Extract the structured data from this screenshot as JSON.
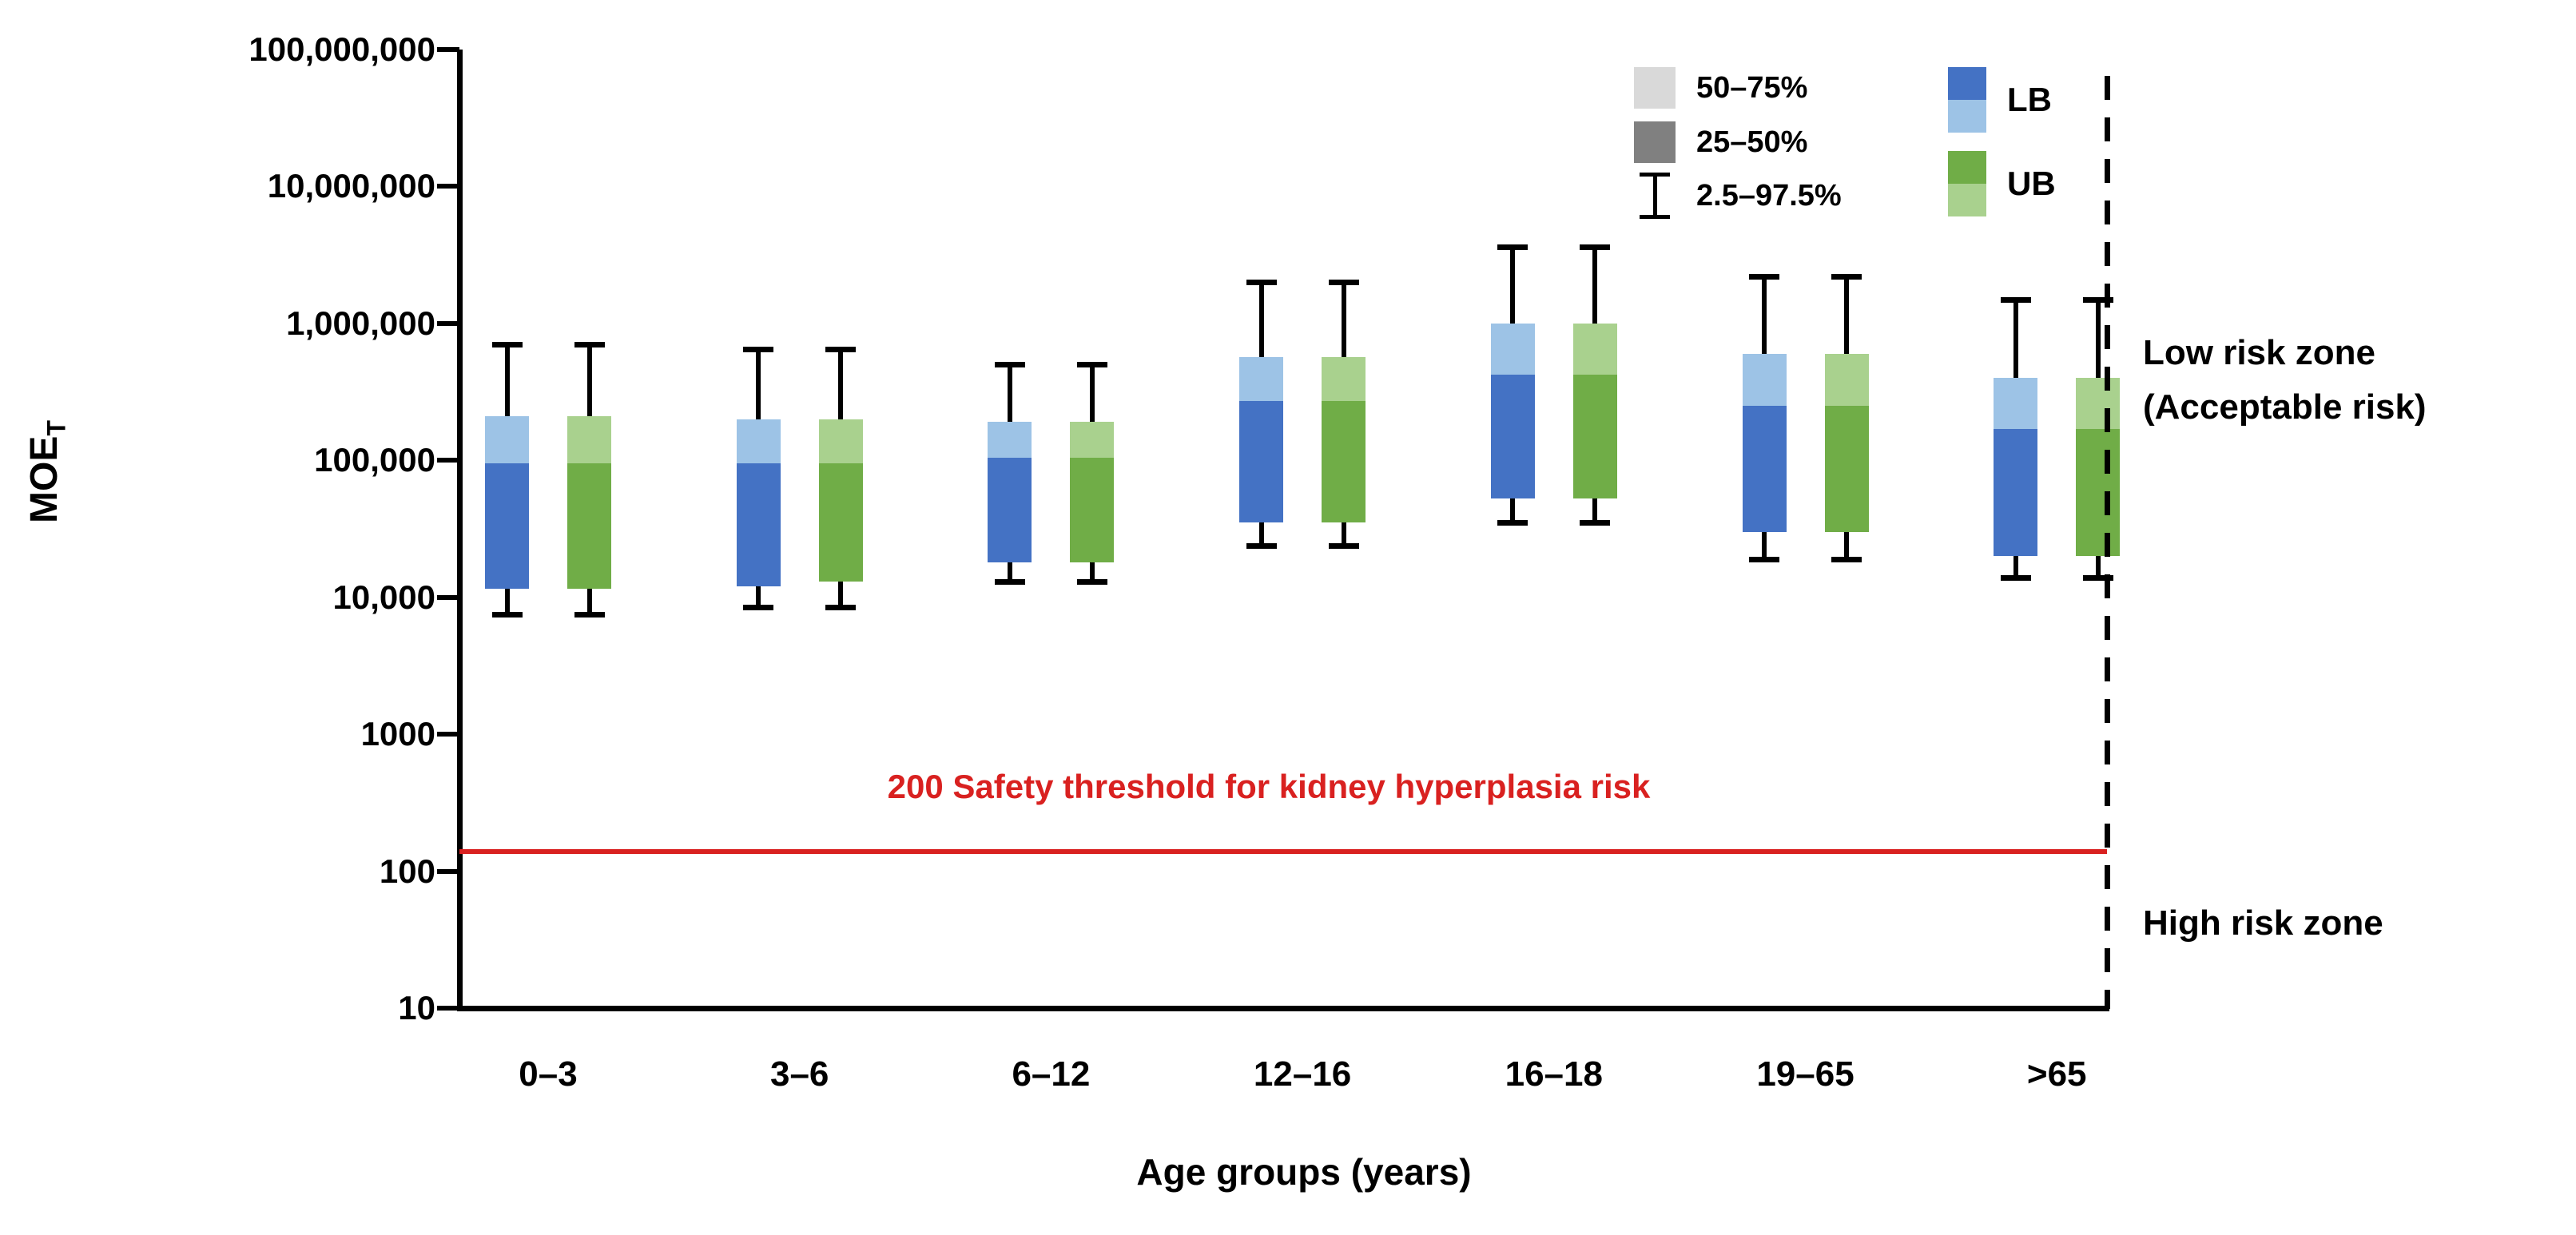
{
  "y_axis": {
    "title": "MOE",
    "title_subscript": "T",
    "tick_labels": [
      "100,000,000",
      "10,000,000",
      "1,000,000",
      "100,000",
      "10,000",
      "1000",
      "100",
      "10"
    ],
    "tick_values": [
      100000000,
      10000000,
      1000000,
      100000,
      10000,
      1000,
      100,
      10
    ]
  },
  "x_axis": {
    "title": "Age groups (years)",
    "categories": [
      "0–3",
      "3–6",
      "6–12",
      "12–16",
      "16–18",
      "19–65",
      ">65"
    ]
  },
  "legend": {
    "percentiles": [
      {
        "label": "50–75%",
        "swatch_color": "#D9D9D9",
        "swatch_type": "square"
      },
      {
        "label": "25–50%",
        "swatch_color": "#808080",
        "swatch_type": "square"
      },
      {
        "label": "2.5–97.5%",
        "swatch_color": "#000000",
        "swatch_type": "errorbar"
      }
    ],
    "series": [
      {
        "label": "LB",
        "top_color": "#4472C4",
        "bottom_color": "#9DC3E6"
      },
      {
        "label": "UB",
        "top_color": "#70AD47",
        "bottom_color": "#A9D18E"
      }
    ]
  },
  "threshold": {
    "label": "200 Safety threshold for kidney hyperplasia risk",
    "value": 200,
    "plot_value": 140,
    "color": "#D92120"
  },
  "zones": {
    "low_line1": "Low risk zone",
    "low_line2": "(Acceptable risk)",
    "high": "High risk zone"
  },
  "chart_data": {
    "type": "boxplot",
    "log_scale": true,
    "ylim": [
      10,
      100000000
    ],
    "ylabel": "MOE_T",
    "xlabel": "Age groups (years)",
    "legend_position": "top-right",
    "grid": false,
    "percentile_bands": [
      "2.5–97.5%",
      "25–50%",
      "50–75%"
    ],
    "categories": [
      "0–3",
      "3–6",
      "6–12",
      "12–16",
      "16–18",
      "19–65",
      ">65"
    ],
    "series": [
      {
        "name": "LB",
        "box_lower_color": "#4472C4",
        "box_upper_color": "#9DC3E6",
        "boxes": [
          {
            "p2_5": 7500,
            "p25": 11500,
            "p50": 95000,
            "p75": 210000,
            "p97_5": 700000
          },
          {
            "p2_5": 8500,
            "p25": 12000,
            "p50": 95000,
            "p75": 200000,
            "p97_5": 650000
          },
          {
            "p2_5": 13000,
            "p25": 18000,
            "p50": 105000,
            "p75": 190000,
            "p97_5": 500000
          },
          {
            "p2_5": 24000,
            "p25": 35000,
            "p50": 270000,
            "p75": 570000,
            "p97_5": 2000000
          },
          {
            "p2_5": 35000,
            "p25": 53000,
            "p50": 420000,
            "p75": 1000000,
            "p97_5": 3600000
          },
          {
            "p2_5": 19000,
            "p25": 30000,
            "p50": 250000,
            "p75": 600000,
            "p97_5": 2200000
          },
          {
            "p2_5": 14000,
            "p25": 20000,
            "p50": 170000,
            "p75": 400000,
            "p97_5": 1500000
          }
        ]
      },
      {
        "name": "UB",
        "box_lower_color": "#70AD47",
        "box_upper_color": "#A9D18E",
        "boxes": [
          {
            "p2_5": 7500,
            "p25": 11500,
            "p50": 95000,
            "p75": 210000,
            "p97_5": 700000
          },
          {
            "p2_5": 8500,
            "p25": 13000,
            "p50": 95000,
            "p75": 200000,
            "p97_5": 650000
          },
          {
            "p2_5": 13000,
            "p25": 18000,
            "p50": 105000,
            "p75": 190000,
            "p97_5": 500000
          },
          {
            "p2_5": 24000,
            "p25": 35000,
            "p50": 270000,
            "p75": 570000,
            "p97_5": 2000000
          },
          {
            "p2_5": 35000,
            "p25": 53000,
            "p50": 420000,
            "p75": 1000000,
            "p97_5": 3600000
          },
          {
            "p2_5": 19000,
            "p25": 30000,
            "p50": 250000,
            "p75": 600000,
            "p97_5": 2200000
          },
          {
            "p2_5": 14000,
            "p25": 20000,
            "p50": 170000,
            "p75": 400000,
            "p97_5": 1500000
          }
        ]
      }
    ]
  }
}
